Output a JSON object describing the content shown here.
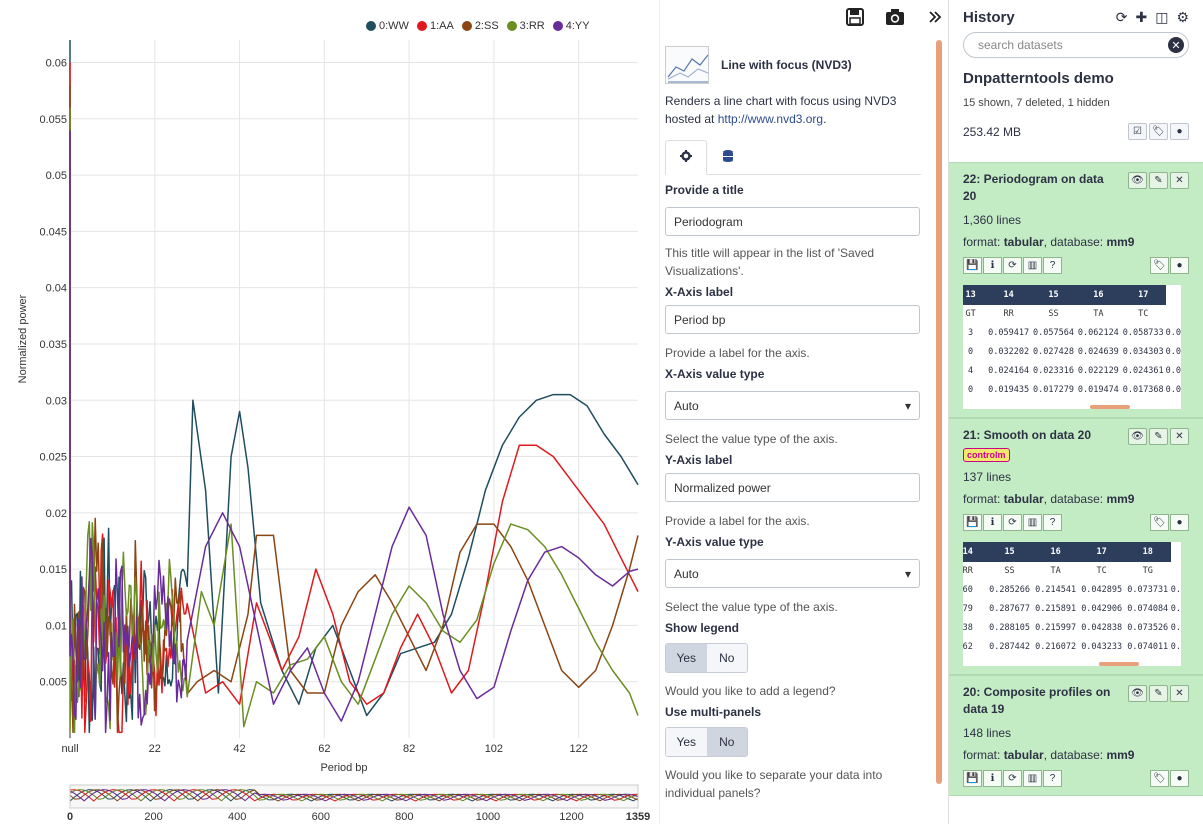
{
  "toolbar": {
    "save_icon": "save-icon",
    "camera_icon": "camera-icon",
    "expand_icon": "expand-icon"
  },
  "chart_data": {
    "type": "line",
    "xlabel": "Period bp",
    "ylabel": "Normalized power",
    "x_ticks": [
      "null",
      "22",
      "42",
      "62",
      "82",
      "102",
      "122"
    ],
    "y_ticks": [
      "0.005",
      "0.01",
      "0.015",
      "0.02",
      "0.025",
      "0.03",
      "0.035",
      "0.04",
      "0.045",
      "0.05",
      "0.055",
      "0.06"
    ],
    "ylim": [
      0,
      0.062
    ],
    "focus_ticks": [
      "0",
      "200",
      "400",
      "600",
      "800",
      "1000",
      "1200",
      "1359"
    ],
    "legend": {
      "position": "top",
      "entries": [
        {
          "name": "0:WW",
          "color": "#1f4e5f"
        },
        {
          "name": "1:AA",
          "color": "#e0191e"
        },
        {
          "name": "2:SS",
          "color": "#8b4513"
        },
        {
          "name": "3:RR",
          "color": "#6b8e23"
        },
        {
          "name": "4:YY",
          "color": "#6a2b9a"
        }
      ]
    },
    "series": [
      {
        "name": "0:WW",
        "color": "#1f4e5f",
        "x": [
          2,
          10,
          15,
          20,
          24,
          28,
          31,
          34,
          37,
          40,
          42,
          44,
          47,
          52,
          56,
          60,
          64,
          68,
          72,
          76,
          80,
          84,
          88,
          92,
          96,
          100,
          104,
          108,
          112,
          116,
          120,
          124,
          128,
          132,
          136
        ],
        "y": [
          0.007,
          0.015,
          0.012,
          0.011,
          0.003,
          0.02,
          0.03,
          0.022,
          0.004,
          0.025,
          0.029,
          0.024,
          0.012,
          0.006,
          0.003,
          0.008,
          0.01,
          0.006,
          0.002,
          0.004,
          0.0075,
          0.008,
          0.0085,
          0.011,
          0.016,
          0.022,
          0.026,
          0.0285,
          0.03,
          0.0305,
          0.0305,
          0.0295,
          0.027,
          0.025,
          0.0225
        ]
      },
      {
        "name": "1:AA",
        "color": "#e0191e",
        "x": [
          2,
          10,
          15,
          20,
          26,
          30,
          34,
          38,
          42,
          46,
          52,
          56,
          60,
          64,
          68,
          72,
          76,
          80,
          84,
          88,
          92,
          96,
          100,
          104,
          108,
          112,
          116,
          120,
          124,
          128,
          132,
          136
        ],
        "y": [
          0.007,
          0.02,
          0.016,
          0.005,
          0.011,
          0.013,
          0.004,
          0.005,
          0.003,
          0.012,
          0.006,
          0.009,
          0.015,
          0.011,
          0.005,
          0.003,
          0.004,
          0.008,
          0.011,
          0.008,
          0.004,
          0.006,
          0.013,
          0.021,
          0.026,
          0.026,
          0.025,
          0.023,
          0.021,
          0.019,
          0.016,
          0.013
        ]
      },
      {
        "name": "2:SS",
        "color": "#8b4513",
        "x": [
          2,
          10,
          15,
          19,
          22,
          24,
          28,
          32,
          36,
          40,
          44,
          46,
          50,
          54,
          58,
          62,
          66,
          70,
          74,
          78,
          82,
          86,
          90,
          94,
          98,
          102,
          106,
          110,
          114,
          118,
          122,
          126,
          130,
          134,
          136
        ],
        "y": [
          0.007,
          0.019,
          0.026,
          0.014,
          0.033,
          0.02,
          0.014,
          0.005,
          0.006,
          0.005,
          0.011,
          0.018,
          0.018,
          0.006,
          0.004,
          0.004,
          0.01,
          0.013,
          0.0145,
          0.012,
          0.009,
          0.006,
          0.01,
          0.0165,
          0.019,
          0.019,
          0.017,
          0.014,
          0.01,
          0.006,
          0.0045,
          0.006,
          0.01,
          0.015,
          0.018
        ]
      },
      {
        "name": "3:RR",
        "color": "#6b8e23",
        "x": [
          2,
          10,
          15,
          20,
          26,
          30,
          33,
          36,
          40,
          43,
          46,
          50,
          54,
          58,
          62,
          66,
          70,
          74,
          78,
          82,
          86,
          90,
          94,
          98,
          102,
          106,
          110,
          114,
          118,
          122,
          126,
          130,
          134,
          136
        ],
        "y": [
          0.007,
          0.012,
          0.008,
          0.013,
          0.015,
          0.02,
          0.013,
          0.01,
          0.019,
          0.001,
          0.005,
          0.004,
          0.0065,
          0.007,
          0.009,
          0.005,
          0.003,
          0.007,
          0.011,
          0.0135,
          0.012,
          0.0095,
          0.0085,
          0.0105,
          0.0155,
          0.019,
          0.0185,
          0.017,
          0.0145,
          0.0115,
          0.0085,
          0.006,
          0.004,
          0.002
        ]
      },
      {
        "name": "4:YY",
        "color": "#6a2b9a",
        "x": [
          2,
          10,
          15,
          20,
          26,
          30,
          34,
          38,
          42,
          46,
          50,
          54,
          58,
          62,
          66,
          70,
          74,
          78,
          82,
          86,
          90,
          94,
          98,
          102,
          106,
          110,
          114,
          118,
          122,
          126,
          130,
          134,
          136
        ],
        "y": [
          0.007,
          0.013,
          0.006,
          0.01,
          0.007,
          0.005,
          0.017,
          0.02,
          0.017,
          0.01,
          0.003,
          0.006,
          0.008,
          0.004,
          0.0015,
          0.005,
          0.011,
          0.017,
          0.0205,
          0.018,
          0.011,
          0.006,
          0.0035,
          0.0045,
          0.0095,
          0.014,
          0.0165,
          0.017,
          0.016,
          0.0145,
          0.0135,
          0.0148,
          0.015
        ]
      }
    ]
  },
  "settings": {
    "viz_title": "Line with focus (NVD3)",
    "viz_desc": "Renders a line chart with focus using NVD3 hosted at",
    "viz_link": "http://www.nvd3.org",
    "viz_desc_end": ".",
    "title_label": "Provide a title",
    "title_value": "Periodogram",
    "title_help": "This title will appear in the list of 'Saved Visualizations'.",
    "xlabel_label": "X-Axis label",
    "xlabel_value": "Period bp",
    "xlabel_help": "Provide a label for the axis.",
    "xtype_label": "X-Axis value type",
    "xtype_value": "Auto",
    "xtype_help": "Select the value type of the axis.",
    "ylabel_label": "Y-Axis label",
    "ylabel_value": "Normalized power",
    "ylabel_help": "Provide a label for the axis.",
    "ytype_label": "Y-Axis value type",
    "ytype_value": "Auto",
    "ytype_help": "Select the value type of the axis.",
    "legend_label": "Show legend",
    "legend_yes": "Yes",
    "legend_no": "No",
    "legend_help": "Would you like to add a legend?",
    "multi_label": "Use multi-panels",
    "multi_yes": "Yes",
    "multi_no": "No",
    "multi_help": "Would you like to separate your data into individual panels?"
  },
  "history": {
    "title": "History",
    "search_placeholder": "search datasets",
    "name": "Dnpatterntools demo",
    "stats": "15 shown, 7 deleted, 1 hidden",
    "size": "253.42 MB",
    "datasets": [
      {
        "title": "22: Periodogram on data 20",
        "lines": "1,360 lines",
        "format": "tabular",
        "database": "mm9",
        "headers": [
          "13",
          "14",
          "15",
          "16",
          "17"
        ],
        "colnames": [
          "GT",
          "RR",
          "SS",
          "TA",
          "TC"
        ],
        "rows": [
          [
            "3",
            "0.059417",
            "0.057564",
            "0.062124",
            "0.058733",
            "0.0"
          ],
          [
            "0",
            "0.032202",
            "0.027428",
            "0.024639",
            "0.034303",
            "0.0"
          ],
          [
            "4",
            "0.024164",
            "0.023316",
            "0.022129",
            "0.024361",
            "0.0"
          ],
          [
            "0",
            "0.019435",
            "0.017279",
            "0.019474",
            "0.017368",
            "0.0"
          ]
        ]
      },
      {
        "title": "21: Smooth on data 20",
        "badge": "controlm",
        "lines": "137 lines",
        "format": "tabular",
        "database": "mm9",
        "headers": [
          "14",
          "15",
          "16",
          "17",
          "18"
        ],
        "colnames": [
          "RR",
          "SS",
          "TA",
          "TC",
          "TG"
        ],
        "rows": [
          [
            "60",
            "0.285266",
            "0.214541",
            "0.042895",
            "0.073731",
            "0."
          ],
          [
            "79",
            "0.287677",
            "0.215891",
            "0.042906",
            "0.074084",
            "0."
          ],
          [
            "38",
            "0.288105",
            "0.215997",
            "0.042838",
            "0.073526",
            "0."
          ],
          [
            "62",
            "0.287442",
            "0.216072",
            "0.043233",
            "0.074011",
            "0."
          ]
        ]
      },
      {
        "title": "20: Composite profiles on data 19",
        "lines": "148 lines",
        "format": "tabular",
        "database": "mm9"
      }
    ],
    "format_label": "format:",
    "database_label": ", database:"
  }
}
